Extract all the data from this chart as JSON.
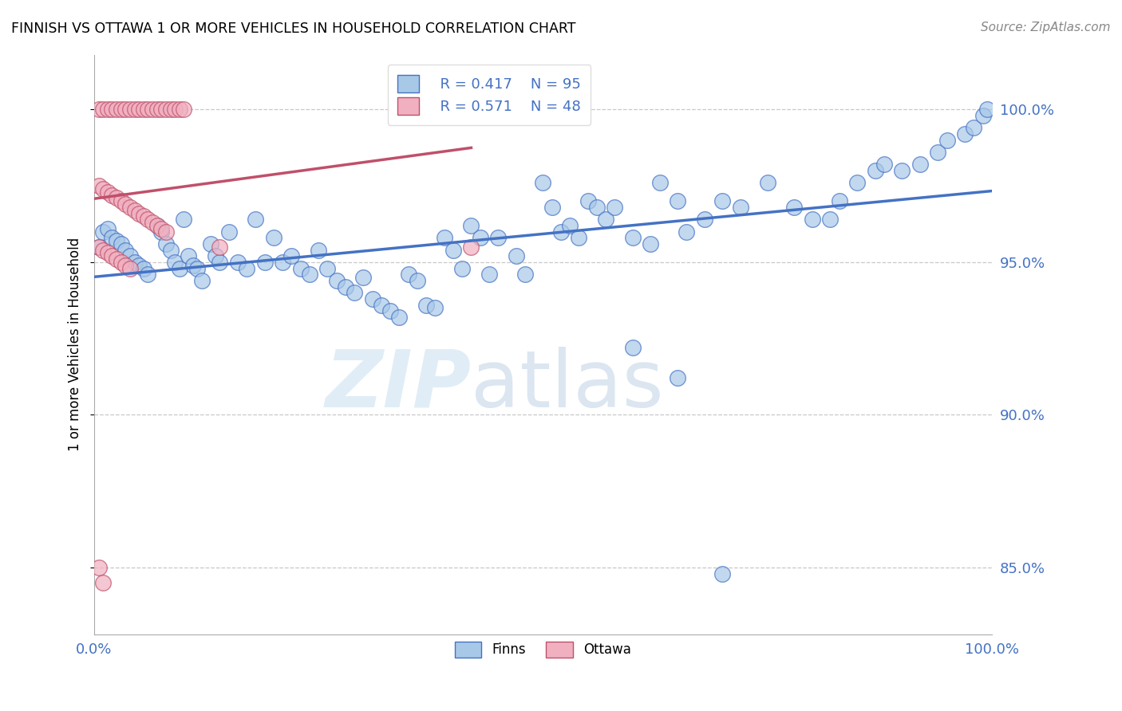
{
  "title": "FINNISH VS OTTAWA 1 OR MORE VEHICLES IN HOUSEHOLD CORRELATION CHART",
  "source": "Source: ZipAtlas.com",
  "ylabel": "1 or more Vehicles in Household",
  "xlim": [
    0.0,
    1.0
  ],
  "ylim": [
    0.828,
    1.018
  ],
  "yticks": [
    0.85,
    0.9,
    0.95,
    1.0
  ],
  "ytick_labels": [
    "85.0%",
    "90.0%",
    "95.0%",
    "100.0%"
  ],
  "finns_R": 0.417,
  "finns_N": 95,
  "ottawa_R": 0.571,
  "ottawa_N": 48,
  "finns_color": "#a8c8e8",
  "ottawa_color": "#f0b0c0",
  "finns_line_color": "#4472c4",
  "ottawa_line_color": "#c0506a",
  "background_color": "#ffffff",
  "watermark_zip": "ZIP",
  "watermark_atlas": "atlas",
  "finns_x": [
    0.005,
    0.01,
    0.015,
    0.02,
    0.025,
    0.03,
    0.035,
    0.04,
    0.045,
    0.05,
    0.055,
    0.06,
    0.07,
    0.075,
    0.08,
    0.085,
    0.09,
    0.095,
    0.1,
    0.105,
    0.11,
    0.115,
    0.12,
    0.13,
    0.135,
    0.14,
    0.15,
    0.16,
    0.17,
    0.18,
    0.19,
    0.2,
    0.21,
    0.22,
    0.23,
    0.24,
    0.25,
    0.26,
    0.27,
    0.28,
    0.29,
    0.3,
    0.31,
    0.32,
    0.33,
    0.34,
    0.35,
    0.36,
    0.37,
    0.38,
    0.39,
    0.4,
    0.41,
    0.42,
    0.43,
    0.44,
    0.45,
    0.47,
    0.48,
    0.5,
    0.51,
    0.52,
    0.53,
    0.54,
    0.55,
    0.56,
    0.57,
    0.58,
    0.6,
    0.62,
    0.63,
    0.65,
    0.66,
    0.68,
    0.7,
    0.72,
    0.75,
    0.78,
    0.8,
    0.82,
    0.83,
    0.85,
    0.87,
    0.88,
    0.9,
    0.92,
    0.94,
    0.95,
    0.97,
    0.98,
    0.99,
    0.995,
    0.6,
    0.65,
    0.7
  ],
  "finns_y": [
    0.955,
    0.96,
    0.961,
    0.958,
    0.957,
    0.956,
    0.954,
    0.952,
    0.95,
    0.949,
    0.948,
    0.946,
    0.962,
    0.96,
    0.956,
    0.954,
    0.95,
    0.948,
    0.964,
    0.952,
    0.949,
    0.948,
    0.944,
    0.956,
    0.952,
    0.95,
    0.96,
    0.95,
    0.948,
    0.964,
    0.95,
    0.958,
    0.95,
    0.952,
    0.948,
    0.946,
    0.954,
    0.948,
    0.944,
    0.942,
    0.94,
    0.945,
    0.938,
    0.936,
    0.934,
    0.932,
    0.946,
    0.944,
    0.936,
    0.935,
    0.958,
    0.954,
    0.948,
    0.962,
    0.958,
    0.946,
    0.958,
    0.952,
    0.946,
    0.976,
    0.968,
    0.96,
    0.962,
    0.958,
    0.97,
    0.968,
    0.964,
    0.968,
    0.958,
    0.956,
    0.976,
    0.97,
    0.96,
    0.964,
    0.97,
    0.968,
    0.976,
    0.968,
    0.964,
    0.964,
    0.97,
    0.976,
    0.98,
    0.982,
    0.98,
    0.982,
    0.986,
    0.99,
    0.992,
    0.994,
    0.998,
    1.0,
    0.922,
    0.912,
    0.848
  ],
  "ottawa_x": [
    0.005,
    0.01,
    0.015,
    0.02,
    0.025,
    0.03,
    0.035,
    0.04,
    0.045,
    0.05,
    0.055,
    0.06,
    0.065,
    0.07,
    0.075,
    0.08,
    0.085,
    0.09,
    0.095,
    0.1,
    0.005,
    0.01,
    0.015,
    0.02,
    0.025,
    0.03,
    0.035,
    0.04,
    0.045,
    0.05,
    0.055,
    0.06,
    0.065,
    0.07,
    0.075,
    0.08,
    0.005,
    0.01,
    0.015,
    0.02,
    0.025,
    0.03,
    0.035,
    0.04,
    0.14,
    0.42,
    0.005,
    0.01
  ],
  "ottawa_y": [
    1.0,
    1.0,
    1.0,
    1.0,
    1.0,
    1.0,
    1.0,
    1.0,
    1.0,
    1.0,
    1.0,
    1.0,
    1.0,
    1.0,
    1.0,
    1.0,
    1.0,
    1.0,
    1.0,
    1.0,
    0.975,
    0.974,
    0.973,
    0.972,
    0.971,
    0.97,
    0.969,
    0.968,
    0.967,
    0.966,
    0.965,
    0.964,
    0.963,
    0.962,
    0.961,
    0.96,
    0.955,
    0.954,
    0.953,
    0.952,
    0.951,
    0.95,
    0.949,
    0.948,
    0.955,
    0.955,
    0.85,
    0.845
  ]
}
